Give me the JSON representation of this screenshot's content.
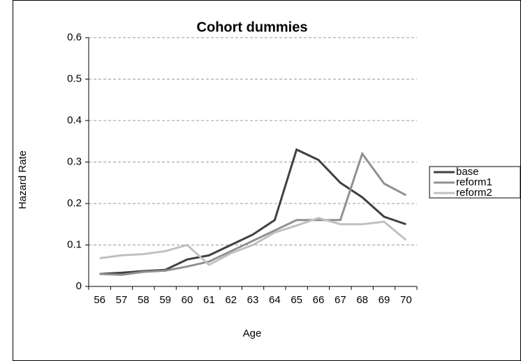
{
  "chart_data": {
    "type": "line",
    "title": "Cohort dummies",
    "xlabel": "Age",
    "ylabel": "Hazard Rate",
    "categories": [
      "56",
      "57",
      "58",
      "59",
      "60",
      "61",
      "62",
      "63",
      "64",
      "65",
      "66",
      "67",
      "68",
      "69",
      "70"
    ],
    "series": [
      {
        "name": "base",
        "color": "#404040",
        "values": [
          0.03,
          0.033,
          0.037,
          0.04,
          0.065,
          0.075,
          0.1,
          0.125,
          0.16,
          0.33,
          0.305,
          0.25,
          0.215,
          0.168,
          0.15
        ]
      },
      {
        "name": "reform1",
        "color": "#909090",
        "values": [
          0.03,
          0.028,
          0.035,
          0.038,
          0.048,
          0.06,
          0.085,
          0.11,
          0.135,
          0.16,
          0.16,
          0.16,
          0.32,
          0.248,
          0.22
        ]
      },
      {
        "name": "reform2",
        "color": "#c0c0c0",
        "values": [
          0.068,
          0.075,
          0.078,
          0.085,
          0.1,
          0.052,
          0.08,
          0.1,
          0.13,
          0.147,
          0.165,
          0.15,
          0.15,
          0.156,
          0.112
        ]
      }
    ],
    "ylim": [
      0,
      0.6
    ],
    "yticks": [
      0,
      0.1,
      0.2,
      0.3,
      0.4,
      0.5,
      0.6
    ],
    "grid": true,
    "legend": "right"
  }
}
